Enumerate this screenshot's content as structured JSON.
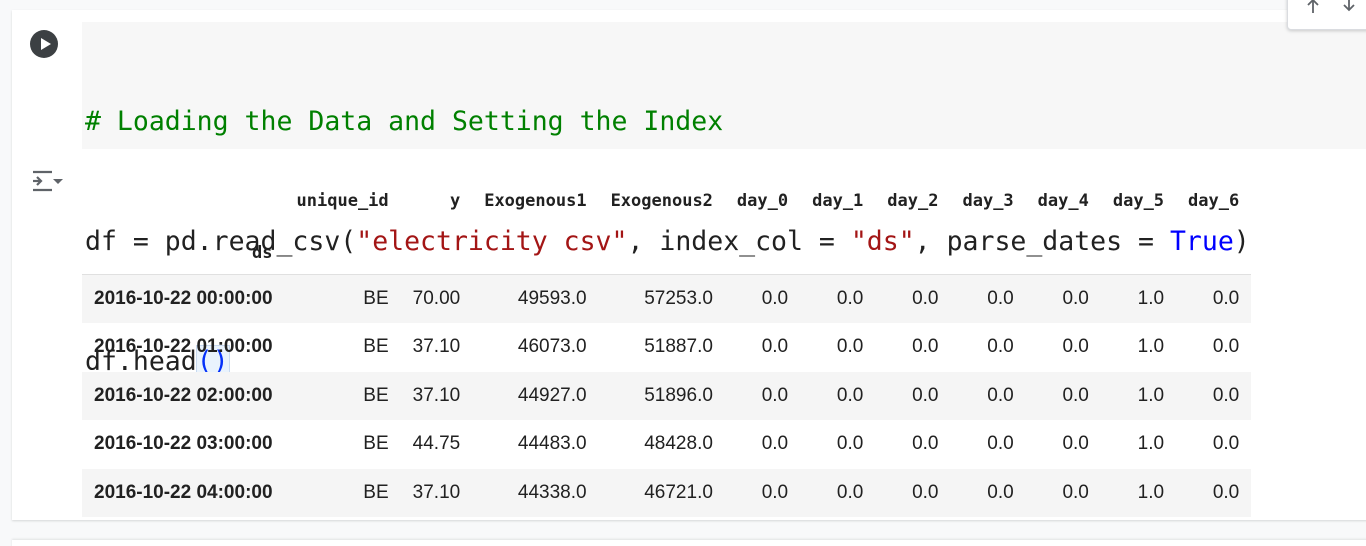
{
  "code": {
    "line1_comment": "# Loading the Data and Setting the Index",
    "line2": {
      "p1": "df = pd.read_csv(",
      "s1": "\"electricity csv\"",
      "p2": ", index_col = ",
      "s2": "\"ds\"",
      "p3": ", parse_dates = ",
      "kw": "True",
      "p4": ")"
    },
    "line3": {
      "p1": "df.head",
      "paren": "()"
    }
  },
  "table": {
    "columns": [
      "unique_id",
      "y",
      "Exogenous1",
      "Exogenous2",
      "day_0",
      "day_1",
      "day_2",
      "day_3",
      "day_4",
      "day_5",
      "day_6"
    ],
    "index_name": "ds",
    "rows": [
      {
        "index": "2016-10-22 00:00:00",
        "cells": [
          "BE",
          "70.00",
          "49593.0",
          "57253.0",
          "0.0",
          "0.0",
          "0.0",
          "0.0",
          "0.0",
          "1.0",
          "0.0"
        ]
      },
      {
        "index": "2016-10-22 01:00:00",
        "cells": [
          "BE",
          "37.10",
          "46073.0",
          "51887.0",
          "0.0",
          "0.0",
          "0.0",
          "0.0",
          "0.0",
          "1.0",
          "0.0"
        ]
      },
      {
        "index": "2016-10-22 02:00:00",
        "cells": [
          "BE",
          "37.10",
          "44927.0",
          "51896.0",
          "0.0",
          "0.0",
          "0.0",
          "0.0",
          "0.0",
          "1.0",
          "0.0"
        ]
      },
      {
        "index": "2016-10-22 03:00:00",
        "cells": [
          "BE",
          "44.75",
          "44483.0",
          "48428.0",
          "0.0",
          "0.0",
          "0.0",
          "0.0",
          "0.0",
          "1.0",
          "0.0"
        ]
      },
      {
        "index": "2016-10-22 04:00:00",
        "cells": [
          "BE",
          "37.10",
          "44338.0",
          "46721.0",
          "0.0",
          "0.0",
          "0.0",
          "0.0",
          "0.0",
          "1.0",
          "0.0"
        ]
      }
    ]
  },
  "icons": {
    "run": "play-circle-icon",
    "output_toggle": "output-filter-icon",
    "move_up": "arrow-up-icon",
    "move_down": "arrow-down-icon"
  }
}
